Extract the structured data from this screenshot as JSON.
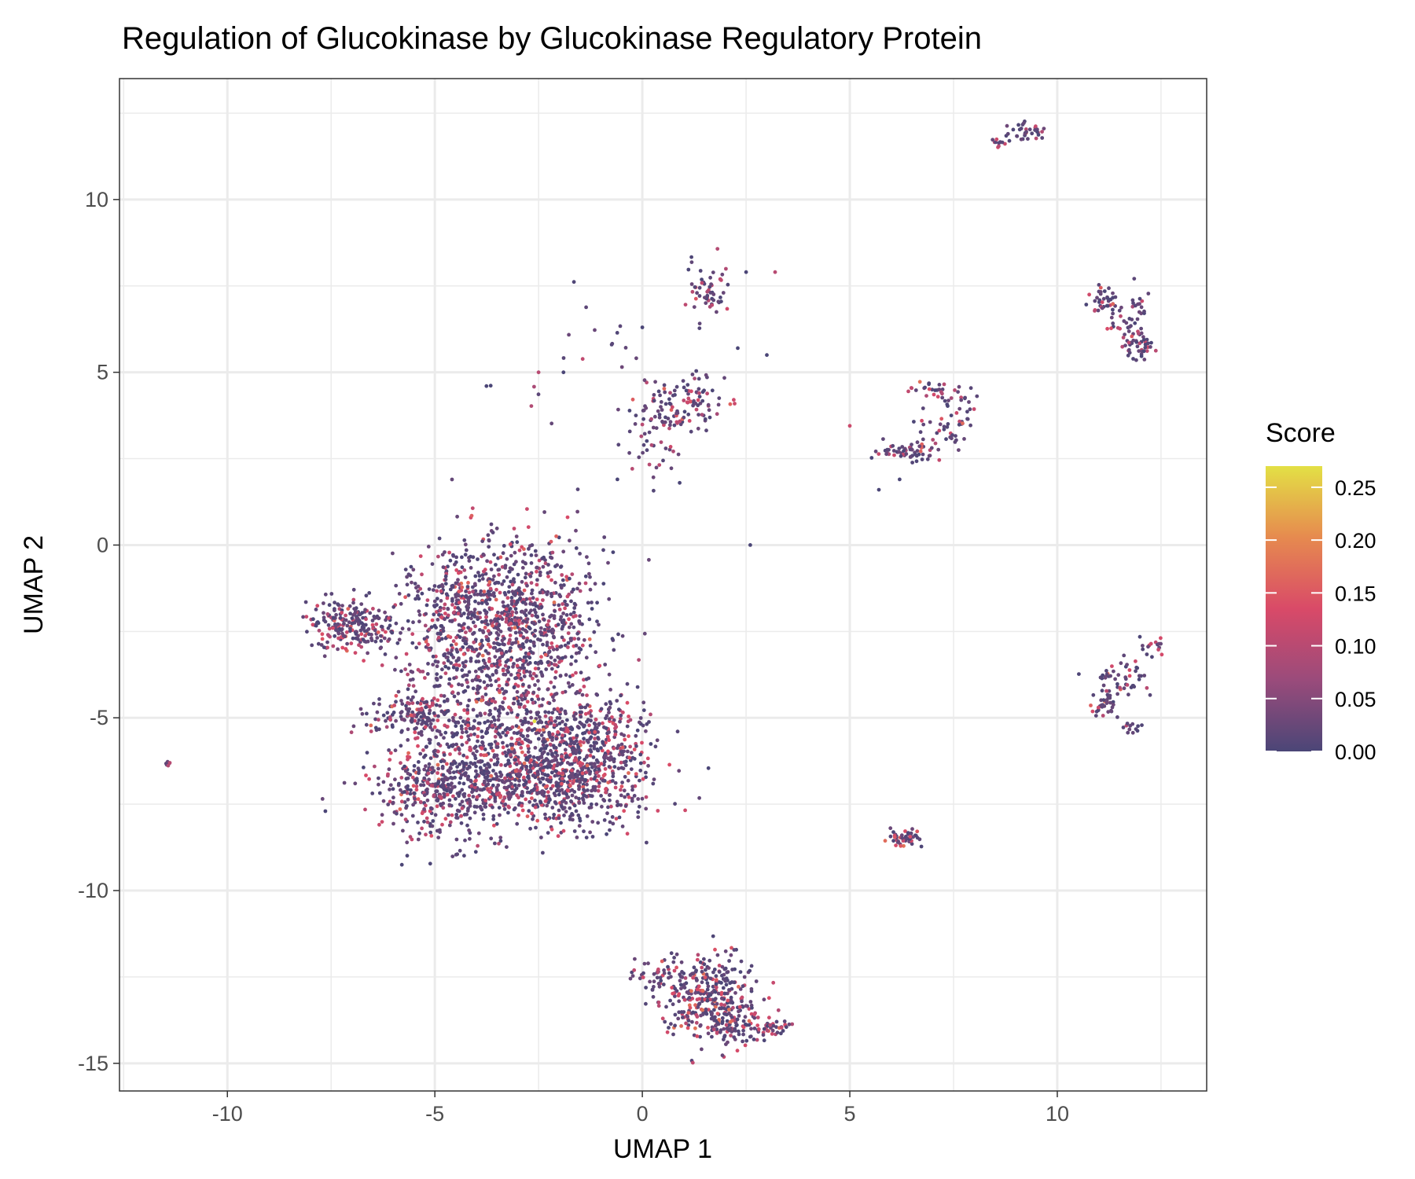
{
  "chart_data": {
    "type": "scatter",
    "title": "Regulation of Glucokinase by Glucokinase Regulatory Protein",
    "xlabel": "UMAP 1",
    "ylabel": "UMAP 2",
    "xlim": [
      -12.6,
      13.6
    ],
    "ylim": [
      -15.8,
      13.5
    ],
    "x_ticks": [
      -10,
      -5,
      0,
      5,
      10
    ],
    "y_ticks": [
      -15,
      -10,
      -5,
      0,
      5,
      10
    ],
    "x_tick_labels": [
      "-10",
      "-5",
      "0",
      "5",
      "10"
    ],
    "y_tick_labels": [
      "-15",
      "-10",
      "-5",
      "0",
      "5",
      "10"
    ],
    "grid": true,
    "legend": {
      "title": "Score",
      "placement": "right",
      "range": [
        0,
        0.27
      ],
      "ticks": [
        0.0,
        0.05,
        0.1,
        0.15,
        0.2,
        0.25
      ],
      "tick_labels": [
        "0.00",
        "0.05",
        "0.10",
        "0.15",
        "0.20",
        "0.25"
      ],
      "colors": [
        "#4b4677",
        "#9a4b7b",
        "#d94a68",
        "#e68a4f",
        "#e3e045"
      ]
    },
    "clusters": [
      {
        "cx": -3.0,
        "cy": -2.3,
        "sx": 1.05,
        "sy": 1.4,
        "n": 900,
        "s": 0.035
      },
      {
        "cx": -4.6,
        "cy": -1.6,
        "sx": 0.6,
        "sy": 0.7,
        "n": 200,
        "s": 0.03
      },
      {
        "cx": -7.0,
        "cy": -2.3,
        "sx": 0.55,
        "sy": 0.35,
        "n": 230,
        "s": 0.035
      },
      {
        "cx": -5.4,
        "cy": -4.9,
        "sx": 0.6,
        "sy": 0.3,
        "n": 140,
        "s": 0.03
      },
      {
        "cx": -4.1,
        "cy": -3.8,
        "sx": 1.0,
        "sy": 0.9,
        "n": 200,
        "s": 0.025
      },
      {
        "cx": -4.8,
        "cy": -7.0,
        "sx": 0.85,
        "sy": 0.75,
        "n": 480,
        "s": 0.035
      },
      {
        "cx": -2.0,
        "cy": -6.7,
        "sx": 1.1,
        "sy": 0.7,
        "n": 820,
        "s": 0.045
      },
      {
        "cx": -1.3,
        "cy": -5.4,
        "sx": 0.7,
        "sy": 0.5,
        "n": 220,
        "s": 0.035
      },
      {
        "cx": -3.2,
        "cy": -5.2,
        "sx": 0.9,
        "sy": 0.7,
        "n": 200,
        "s": 0.03
      },
      {
        "cx": -11.4,
        "cy": -6.35,
        "sx": 0.06,
        "sy": 0.05,
        "n": 7,
        "s": 0.04
      },
      {
        "cx": 1.6,
        "cy": -13.1,
        "sx": 0.55,
        "sy": 0.6,
        "n": 330,
        "s": 0.045
      },
      {
        "cx": 2.2,
        "cy": -13.9,
        "sx": 0.5,
        "sy": 0.25,
        "n": 80,
        "s": 0.04
      },
      {
        "cx": 0.5,
        "cy": -12.4,
        "sx": 0.4,
        "sy": 0.25,
        "n": 45,
        "s": 0.03
      },
      {
        "cx": 3.1,
        "cy": -14.0,
        "sx": 0.25,
        "sy": 0.12,
        "n": 30,
        "s": 0.03
      },
      {
        "cx": 6.3,
        "cy": -8.5,
        "sx": 0.22,
        "sy": 0.12,
        "n": 48,
        "s": 0.05
      },
      {
        "cx": 0.8,
        "cy": 4.1,
        "sx": 0.5,
        "sy": 0.45,
        "n": 85,
        "s": 0.03
      },
      {
        "cx": 0.3,
        "cy": 3.0,
        "sx": 0.45,
        "sy": 0.7,
        "n": 40,
        "s": 0.025
      },
      {
        "cx": 1.5,
        "cy": 4.4,
        "sx": 0.4,
        "sy": 0.35,
        "n": 30,
        "s": 0.03
      },
      {
        "cx": 1.6,
        "cy": 7.3,
        "sx": 0.25,
        "sy": 0.4,
        "n": 55,
        "s": 0.03
      },
      {
        "cx": -1.2,
        "cy": 5.7,
        "sx": 0.6,
        "sy": 0.6,
        "n": 12,
        "s": 0.04
      },
      {
        "cx": -2.3,
        "cy": 4.3,
        "sx": 0.2,
        "sy": 0.3,
        "n": 4,
        "s": 0.02
      },
      {
        "cx": -3.7,
        "cy": 4.6,
        "sx": 0.05,
        "sy": 0.1,
        "n": 2,
        "s": 0.02
      },
      {
        "cx": 6.3,
        "cy": 2.7,
        "sx": 0.4,
        "sy": 0.15,
        "n": 55,
        "s": 0.03
      },
      {
        "cx": 7.3,
        "cy": 3.3,
        "sx": 0.35,
        "sy": 0.25,
        "n": 30,
        "s": 0.03
      },
      {
        "cx": 7.7,
        "cy": 4.0,
        "sx": 0.2,
        "sy": 0.3,
        "n": 30,
        "s": 0.03
      },
      {
        "cx": 6.9,
        "cy": 4.5,
        "sx": 0.3,
        "sy": 0.15,
        "n": 22,
        "s": 0.03
      },
      {
        "cx": 11.2,
        "cy": 7.1,
        "sx": 0.22,
        "sy": 0.2,
        "n": 40,
        "s": 0.03
      },
      {
        "cx": 11.5,
        "cy": 6.2,
        "sx": 0.2,
        "sy": 0.3,
        "n": 20,
        "s": 0.04
      },
      {
        "cx": 12.0,
        "cy": 6.6,
        "sx": 0.12,
        "sy": 0.35,
        "n": 25,
        "s": 0.03
      },
      {
        "cx": 11.9,
        "cy": 5.7,
        "sx": 0.22,
        "sy": 0.15,
        "n": 35,
        "s": 0.03
      },
      {
        "cx": 9.3,
        "cy": 12.0,
        "sx": 0.25,
        "sy": 0.15,
        "n": 30,
        "s": 0.03
      },
      {
        "cx": 8.7,
        "cy": 11.7,
        "sx": 0.3,
        "sy": 0.1,
        "n": 15,
        "s": 0.04
      },
      {
        "cx": 11.6,
        "cy": -3.8,
        "sx": 0.35,
        "sy": 0.3,
        "n": 50,
        "s": 0.04
      },
      {
        "cx": 11.1,
        "cy": -4.6,
        "sx": 0.15,
        "sy": 0.2,
        "n": 35,
        "s": 0.04
      },
      {
        "cx": 12.2,
        "cy": -2.9,
        "sx": 0.2,
        "sy": 0.12,
        "n": 15,
        "s": 0.03
      },
      {
        "cx": 11.8,
        "cy": -5.3,
        "sx": 0.12,
        "sy": 0.12,
        "n": 12,
        "s": 0.03
      }
    ],
    "singletons": [
      {
        "x": 2.6,
        "y": 0.0,
        "s": 0.0
      },
      {
        "x": 5.0,
        "y": 3.45,
        "s": 0.12
      },
      {
        "x": 3.2,
        "y": 7.9,
        "s": 0.1
      },
      {
        "x": 2.5,
        "y": 7.9,
        "s": 0.0
      },
      {
        "x": 3.0,
        "y": 5.5,
        "s": 0.0
      },
      {
        "x": 2.3,
        "y": 5.7,
        "s": 0.0
      },
      {
        "x": -2.5,
        "y": 5.0,
        "s": 0.1
      },
      {
        "x": -1.9,
        "y": 5.0,
        "s": 0.0
      },
      {
        "x": 0.0,
        "y": 6.3,
        "s": 0.0
      },
      {
        "x": 5.7,
        "y": 1.6,
        "s": 0.0
      },
      {
        "x": 6.2,
        "y": 1.9,
        "s": 0.0
      },
      {
        "x": 0.9,
        "y": 1.8,
        "s": 0.0
      },
      {
        "x": -0.6,
        "y": 1.9,
        "s": 0.0
      },
      {
        "x": -2.2,
        "y": 0.1,
        "s": 0.15
      },
      {
        "x": -2.6,
        "y": -5.1,
        "s": 0.27
      }
    ]
  }
}
